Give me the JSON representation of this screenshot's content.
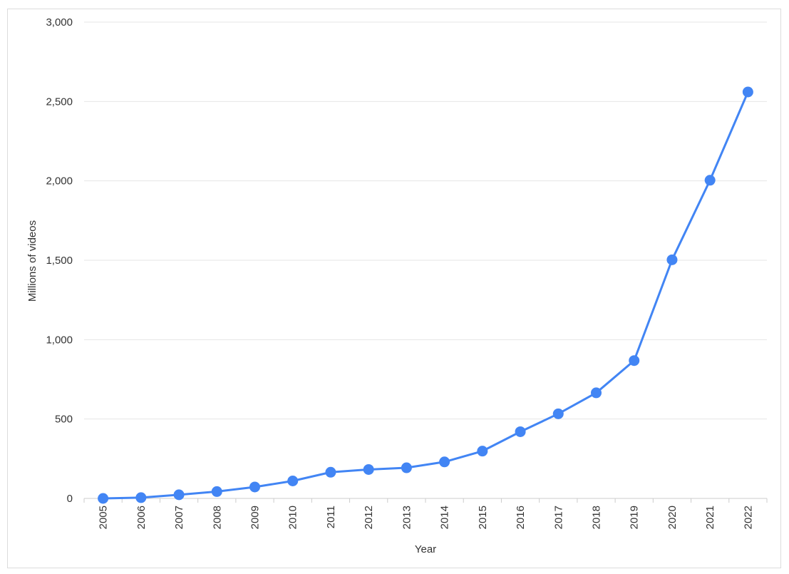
{
  "chart_data": {
    "type": "line",
    "xlabel": "Year",
    "ylabel": "Millions of videos",
    "ylim": [
      0,
      3000
    ],
    "yticks": [
      0,
      500,
      1000,
      1500,
      2000,
      2500,
      3000
    ],
    "ytick_labels": [
      "0",
      "500",
      "1,000",
      "1,500",
      "2,000",
      "2,500",
      "3,000"
    ],
    "categories": [
      "2005",
      "2006",
      "2007",
      "2008",
      "2009",
      "2010",
      "2011",
      "2012",
      "2013",
      "2014",
      "2015",
      "2016",
      "2017",
      "2018",
      "2019",
      "2020",
      "2021",
      "2022"
    ],
    "series": [
      {
        "values": [
          0,
          5,
          23,
          43,
          72,
          110,
          165,
          182,
          193,
          230,
          298,
          420,
          533,
          665,
          868,
          1503,
          2004,
          2560
        ],
        "color": "#4285f4"
      }
    ],
    "grid": true,
    "legend": "none"
  }
}
